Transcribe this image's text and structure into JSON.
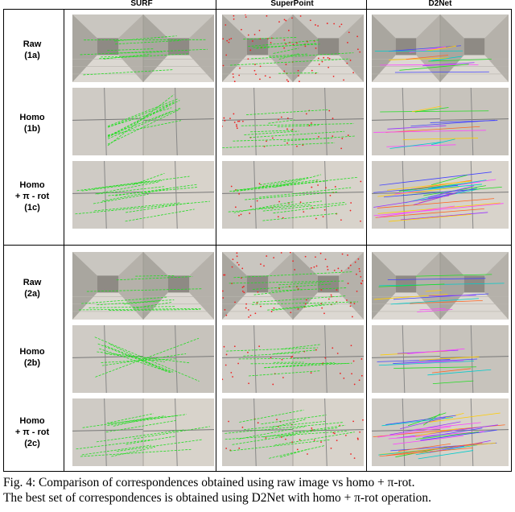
{
  "columns": [
    "SURF",
    "SuperPoint",
    "D2Net"
  ],
  "rows": [
    {
      "lines": [
        "Raw",
        "(1a)"
      ]
    },
    {
      "lines": [
        "Homo",
        "(1b)"
      ]
    },
    {
      "lines": [
        "Homo",
        "+ π - rot",
        "(1c)"
      ]
    },
    {
      "lines": [
        "Raw",
        "(2a)"
      ]
    },
    {
      "lines": [
        "Homo",
        "(2b)"
      ]
    },
    {
      "lines": [
        "Homo",
        "+ π - rot",
        "(2c)"
      ]
    }
  ],
  "caption": {
    "line1": "Fig. 4: Comparison of correspondences obtained using raw image vs homo + π-rot.",
    "line2": "The best set of correspondences is obtained using D2Net with homo + π-rot operation."
  },
  "colors": {
    "surf_match": "#22dd22",
    "superpoint_keypoint": "#ee2222",
    "superpoint_match": "#22dd22",
    "d2net_palette": [
      "#ff44ff",
      "#4444ff",
      "#22dd22",
      "#ffcc00",
      "#00cccc",
      "#ff6622",
      "#9933ff"
    ]
  }
}
